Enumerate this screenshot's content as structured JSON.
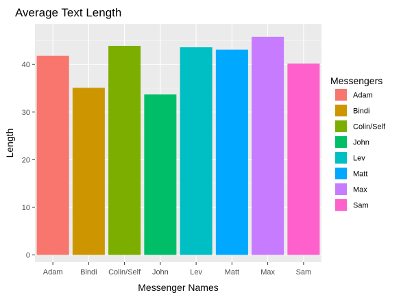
{
  "chart_data": {
    "type": "bar",
    "title": "Average Text Length",
    "xlabel": "Messenger Names",
    "ylabel": "Length",
    "categories": [
      "Adam",
      "Bindi",
      "Colin/Self",
      "John",
      "Lev",
      "Matt",
      "Max",
      "Sam"
    ],
    "values": [
      41.8,
      35.1,
      43.9,
      33.7,
      43.6,
      43.1,
      45.8,
      40.2
    ],
    "colors": [
      "#F8766D",
      "#CD9600",
      "#7CAE00",
      "#00BE67",
      "#00BFC4",
      "#00A9FF",
      "#C77CFF",
      "#FF61CC"
    ],
    "ylim": [
      -1.5,
      48.5
    ],
    "yticks": [
      0,
      10,
      20,
      30,
      40
    ],
    "grid": true,
    "legend": {
      "title": "Messengers",
      "position": "right",
      "entries": [
        "Adam",
        "Bindi",
        "Colin/Self",
        "John",
        "Lev",
        "Matt",
        "Max",
        "Sam"
      ]
    }
  }
}
